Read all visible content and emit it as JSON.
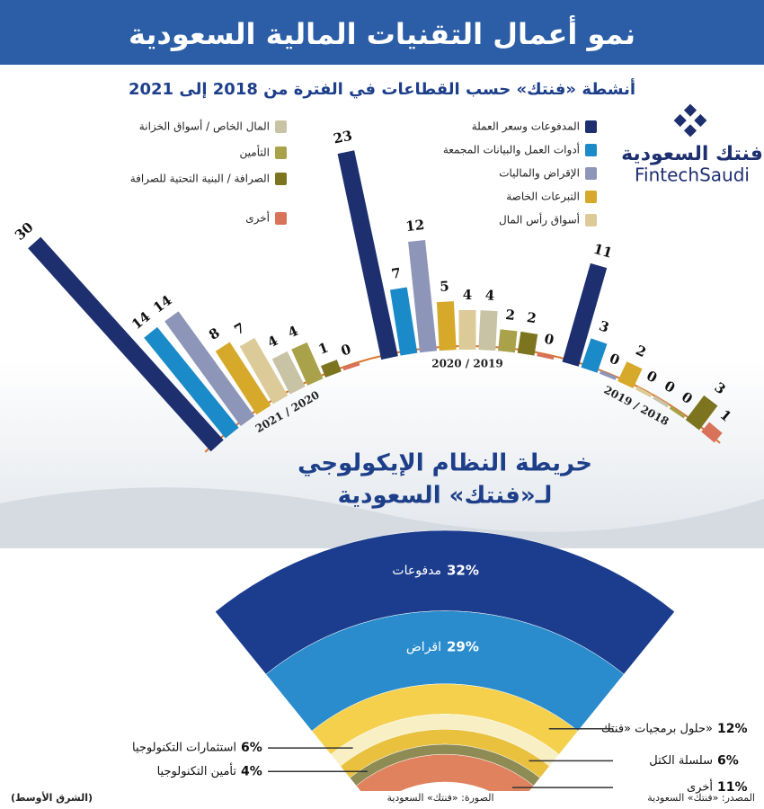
{
  "header": {
    "title": "نمو أعمال التقنيات المالية السعودية"
  },
  "logo": {
    "name_ar": "فنتك السعودية",
    "name_en": "FintechSaudi"
  },
  "chart_data": [
    {
      "type": "bar",
      "title": "أنشطة «فنتك» حسب القطاعات في الفترة من 2018 إلى 2021",
      "categories": [
        "2021 / 2020",
        "2020 / 2019",
        "2019 / 2018"
      ],
      "series": [
        {
          "name": "المدفوعات وسعر العملة",
          "color": "#1d2f6f",
          "values": [
            30,
            23,
            11
          ]
        },
        {
          "name": "أدوات العمل والبيانات المجمعة",
          "color": "#1a8ac8",
          "values": [
            14,
            7,
            3
          ]
        },
        {
          "name": "الإقراض والماليات",
          "color": "#8d95b8",
          "values": [
            14,
            12,
            0
          ]
        },
        {
          "name": "التبرعات الخاصة",
          "color": "#d6a92a",
          "values": [
            8,
            5,
            2
          ]
        },
        {
          "name": "أسواق رأس المال",
          "color": "#dccb98",
          "values": [
            7,
            4,
            0
          ]
        },
        {
          "name": "المال الخاص / أسواق الخزانة",
          "color": "#c9c3a6",
          "values": [
            4,
            4,
            0
          ]
        },
        {
          "name": "التأمين",
          "color": "#a9a24a",
          "values": [
            4,
            2,
            0
          ]
        },
        {
          "name": "الصرافة / البنية التحتية للصرافة",
          "color": "#7d7420",
          "values": [
            1,
            2,
            3
          ]
        },
        {
          "name": "أخرى",
          "color": "#d8735a",
          "values": [
            0,
            0,
            1
          ]
        }
      ]
    },
    {
      "type": "pie",
      "title": "خريطة النظام الإيكولوجي",
      "subtitle": "لـ«فنتك» السعودية",
      "categories": [
        "مدفوعات",
        "اقراض",
        "حلول برمجيات «فنتك»",
        "استثمارات التكنولوجيا",
        "سلسلة الكتل",
        "تأمين التكنولوجيا",
        "أخرى"
      ],
      "values": [
        32,
        29,
        12,
        6,
        6,
        4,
        11
      ],
      "value_labels": [
        "32%",
        "29%",
        "12%",
        "6%",
        "6%",
        "4%",
        "11%"
      ],
      "colors": [
        "#1c3d8e",
        "#2a8ccc",
        "#f4d04c",
        "#f8f0c4",
        "#e9c13f",
        "#8f8b55",
        "#e0825e"
      ]
    }
  ],
  "footer": {
    "credit": "(الشرق الأوسط)",
    "image": "الصورة: «فنتك» السعودية",
    "source": "المصدر: «فنتك» السعودية"
  }
}
